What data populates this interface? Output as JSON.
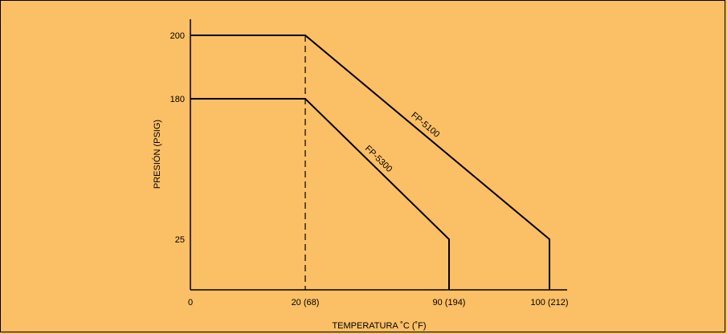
{
  "chart_data": {
    "type": "line",
    "title": "",
    "xlabel": "TEMPERATURA ˚C (˚F)",
    "ylabel": "PRESIÓN (PSIG)",
    "x_ticks": [
      {
        "value": 0,
        "label": "0"
      },
      {
        "value": 20,
        "label": "20 (68)"
      },
      {
        "value": 90,
        "label": "90 (194)"
      },
      {
        "value": 100,
        "label": "100 (212)"
      }
    ],
    "y_ticks": [
      {
        "value": 25,
        "label": "25"
      },
      {
        "value": 180,
        "label": "180"
      },
      {
        "value": 200,
        "label": "200"
      }
    ],
    "series": [
      {
        "name": "FP-5100",
        "points": [
          [
            0,
            200
          ],
          [
            20,
            200
          ],
          [
            100,
            25
          ],
          [
            100,
            0
          ]
        ]
      },
      {
        "name": "FP-5300",
        "points": [
          [
            0,
            180
          ],
          [
            20,
            180
          ],
          [
            90,
            25
          ],
          [
            90,
            0
          ]
        ]
      }
    ],
    "reference_lines": [
      {
        "type": "vertical",
        "x": 20,
        "style": "dashed"
      }
    ],
    "grid": false,
    "legend": "none"
  }
}
